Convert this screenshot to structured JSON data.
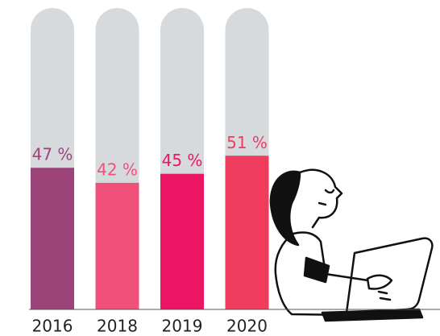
{
  "chart_data": {
    "type": "bar",
    "categories": [
      "2016",
      "2018",
      "2019",
      "2020"
    ],
    "values": [
      47,
      42,
      45,
      51
    ],
    "value_labels": [
      "47 %",
      "42 %",
      "45 %",
      "51 %"
    ],
    "colors": [
      "#9c4479",
      "#f0517a",
      "#ec1563",
      "#ef3c5d"
    ],
    "track_color": "#d6dadd",
    "ylim": [
      0,
      100
    ]
  }
}
